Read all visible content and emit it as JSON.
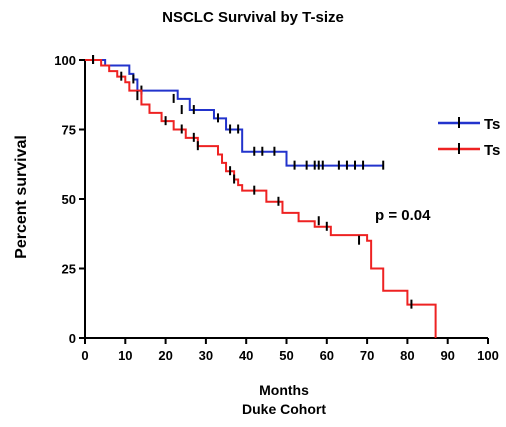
{
  "chart_data": {
    "type": "line",
    "subtype": "kaplan-meier",
    "title": "NSCLC Survival by T-size",
    "xlabel": "Months",
    "subcaption": "Duke Cohort",
    "ylabel": "Percent survival",
    "xlim": [
      0,
      100
    ],
    "ylim": [
      0,
      100
    ],
    "xticks": [
      0,
      10,
      20,
      30,
      40,
      50,
      60,
      70,
      80,
      90,
      100
    ],
    "yticks": [
      0,
      25,
      50,
      75,
      100
    ],
    "grid": false,
    "legend_position": "right",
    "annotation": "p = 0.04",
    "series": [
      {
        "name": "Ts",
        "color": "#2233cc",
        "steps": [
          [
            0,
            100
          ],
          [
            5,
            98
          ],
          [
            11,
            95
          ],
          [
            12,
            93
          ],
          [
            13,
            89
          ],
          [
            23,
            86
          ],
          [
            26,
            82
          ],
          [
            32,
            79
          ],
          [
            35,
            75
          ],
          [
            39,
            67
          ],
          [
            50,
            62
          ],
          [
            74,
            62
          ]
        ],
        "censored": [
          [
            2,
            100
          ],
          [
            12,
            93
          ],
          [
            14,
            89
          ],
          [
            22,
            86
          ],
          [
            24,
            82
          ],
          [
            27,
            82
          ],
          [
            33,
            79
          ],
          [
            36,
            75
          ],
          [
            38,
            75
          ],
          [
            42,
            67
          ],
          [
            44,
            67
          ],
          [
            47,
            67
          ],
          [
            52,
            62
          ],
          [
            55,
            62
          ],
          [
            57,
            62
          ],
          [
            58,
            62
          ],
          [
            59,
            62
          ],
          [
            63,
            62
          ],
          [
            65,
            62
          ],
          [
            67,
            62
          ],
          [
            69,
            62
          ],
          [
            74,
            62
          ]
        ]
      },
      {
        "name": "Ts",
        "color": "#ee2222",
        "steps": [
          [
            0,
            100
          ],
          [
            4,
            98
          ],
          [
            6,
            96
          ],
          [
            8,
            94
          ],
          [
            10,
            92
          ],
          [
            11,
            89
          ],
          [
            14,
            84
          ],
          [
            16,
            81
          ],
          [
            19,
            78
          ],
          [
            22,
            75
          ],
          [
            25,
            72
          ],
          [
            28,
            69
          ],
          [
            33,
            66
          ],
          [
            34,
            63
          ],
          [
            35,
            60
          ],
          [
            37,
            57
          ],
          [
            38,
            55
          ],
          [
            39,
            53
          ],
          [
            45,
            49
          ],
          [
            49,
            45
          ],
          [
            53,
            42
          ],
          [
            57,
            40
          ],
          [
            61,
            37
          ],
          [
            70,
            35
          ],
          [
            71,
            25
          ],
          [
            74,
            17
          ],
          [
            80,
            12
          ],
          [
            87,
            0
          ]
        ],
        "censored": [
          [
            2,
            100
          ],
          [
            9,
            94
          ],
          [
            13,
            87
          ],
          [
            20,
            78
          ],
          [
            24,
            75
          ],
          [
            27,
            72
          ],
          [
            28,
            69
          ],
          [
            36,
            60
          ],
          [
            37,
            57
          ],
          [
            42,
            53
          ],
          [
            48,
            49
          ],
          [
            58,
            42
          ],
          [
            60,
            40
          ],
          [
            68,
            35
          ],
          [
            81,
            12
          ]
        ]
      }
    ]
  }
}
